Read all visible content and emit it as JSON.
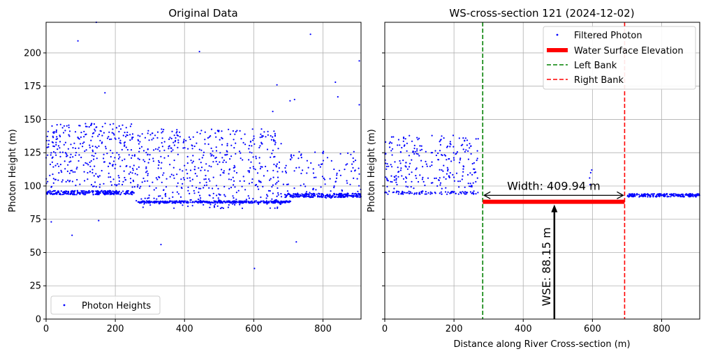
{
  "chart_data": [
    {
      "type": "scatter",
      "title": "Original Data",
      "xlabel": "",
      "ylabel": "Photon Height (m)",
      "xlim": [
        0,
        910
      ],
      "ylim": [
        0,
        223
      ],
      "xticks": [
        0,
        200,
        400,
        600,
        800
      ],
      "yticks": [
        0,
        25,
        50,
        75,
        100,
        125,
        150,
        175,
        200
      ],
      "grid": true,
      "legend": {
        "placement": "lower-left",
        "entries": [
          "Photon Heights"
        ]
      },
      "colors": {
        "points": "#0000ff"
      },
      "series": [
        {
          "name": "Photon Heights",
          "points": [
            [
              15,
              73
            ],
            [
              75,
              63
            ],
            [
              92,
              209
            ],
            [
              145,
              223
            ],
            [
              152,
              74
            ],
            [
              170,
              170
            ],
            [
              332,
              56
            ],
            [
              443,
              201
            ],
            [
              602,
              38
            ],
            [
              655,
              156
            ],
            [
              667,
              176
            ],
            [
              705,
              164
            ],
            [
              718,
              165
            ],
            [
              723,
              58
            ],
            [
              764,
              214
            ],
            [
              836,
              178
            ],
            [
              843,
              167
            ],
            [
              905,
              194
            ],
            [
              905,
              161
            ]
          ],
          "bands": [
            {
              "x": [
                0,
                255
              ],
              "y_center": 95,
              "y_spread": 1.5,
              "count": 260
            },
            {
              "x": [
                265,
                708
              ],
              "y_center": 88,
              "y_spread": 0.8,
              "count": 420
            },
            {
              "x": [
                690,
                910
              ],
              "y_center": 93,
              "y_spread": 1.5,
              "count": 220
            },
            {
              "x": [
                0,
                255
              ],
              "y_center": 123,
              "y_spread": 24,
              "count": 320
            },
            {
              "x": [
                255,
                680
              ],
              "y_center": 113,
              "y_spread": 30,
              "count": 520
            },
            {
              "x": [
                680,
                910
              ],
              "y_center": 108,
              "y_spread": 18,
              "count": 110
            }
          ]
        }
      ]
    },
    {
      "type": "scatter",
      "title": "WS-cross-section 121 (2024-12-02)",
      "xlabel": "Distance along River Cross-section (m)",
      "ylabel": "Photon Height (m)",
      "xlim": [
        0,
        910
      ],
      "ylim": [
        0,
        223
      ],
      "xticks": [
        0,
        200,
        400,
        600,
        800
      ],
      "yticks": [
        0,
        25,
        50,
        75,
        100,
        125,
        150,
        175,
        200
      ],
      "grid": true,
      "legend": {
        "placement": "top-right",
        "entries": [
          "Filtered Photon",
          "Water Surface Elevation",
          "Left Bank",
          "Right Bank"
        ]
      },
      "colors": {
        "points": "#0000ff",
        "wse": "#ff0000",
        "left_bank": "#008000",
        "right_bank": "#ff0000",
        "arrows": "#000000"
      },
      "series": [
        {
          "name": "Filtered Photon",
          "points": [
            [
              592,
              106
            ],
            [
              595,
              110
            ],
            [
              598,
              112
            ],
            [
              593,
              101
            ]
          ],
          "bands": [
            {
              "x": [
                0,
                270
              ],
              "y_center": 118,
              "y_spread": 20,
              "count": 250
            },
            {
              "x": [
                0,
                270
              ],
              "y_center": 95,
              "y_spread": 1.2,
              "count": 90
            },
            {
              "x": [
                700,
                910
              ],
              "y_center": 93,
              "y_spread": 1.2,
              "count": 220
            }
          ]
        },
        {
          "name": "Water Surface Elevation",
          "x": [
            283,
            693
          ],
          "y": 88.15
        },
        {
          "name": "Left Bank",
          "x": 283
        },
        {
          "name": "Right Bank",
          "x": 693
        }
      ],
      "annotations": {
        "width_label": "Width: 409.94 m",
        "width_value": 409.94,
        "width_arrow_y": 93,
        "wse_label": "WSE: 88.15 m",
        "wse_value": 88.15,
        "wse_arrow_x": 490
      }
    }
  ]
}
